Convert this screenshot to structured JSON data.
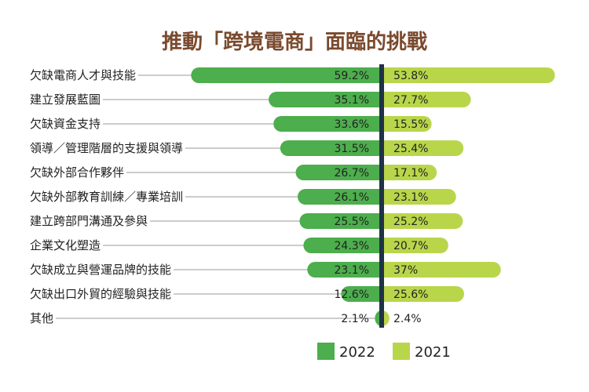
{
  "chart_data": {
    "type": "bar",
    "title": "推動「跨境電商」面臨的挑戰",
    "orientation": "horizontal-butterfly",
    "categories": [
      "欠缺電商人才與技能",
      "建立發展藍圖",
      "欠缺資金支持",
      "領導／管理階層的支援與領導",
      "欠缺外部合作夥伴",
      "欠缺外部教育訓練／專業培訓",
      "建立跨部門溝通及參與",
      "企業文化塑造",
      "欠缺成立與營運品牌的技能",
      "欠缺出口外貿的經驗與技能",
      "其他"
    ],
    "series": [
      {
        "name": "2022",
        "color": "#4cae4c",
        "values": [
          59.2,
          35.1,
          33.6,
          31.5,
          26.7,
          26.1,
          25.5,
          24.3,
          23.1,
          12.6,
          2.1
        ],
        "labels": [
          "59.2%",
          "35.1%",
          "33.6%",
          "31.5%",
          "26.7%",
          "26.1%",
          "25.5%",
          "24.3%",
          "23.1%",
          "12.6%",
          "2.1%"
        ]
      },
      {
        "name": "2021",
        "color": "#b9d64b",
        "values": [
          53.8,
          27.7,
          15.5,
          25.4,
          17.1,
          23.1,
          25.2,
          20.7,
          37,
          25.6,
          2.4
        ],
        "labels": [
          "53.8%",
          "27.7%",
          "15.5%",
          "25.4%",
          "17.1%",
          "23.1%",
          "25.2%",
          "20.7%",
          "37%",
          "25.6%",
          "2.4%"
        ]
      }
    ],
    "legend": [
      "2022",
      "2021"
    ],
    "legend_position": "bottom-right",
    "center_line_color": "#1f3344",
    "leader_line_color": "#999999"
  }
}
